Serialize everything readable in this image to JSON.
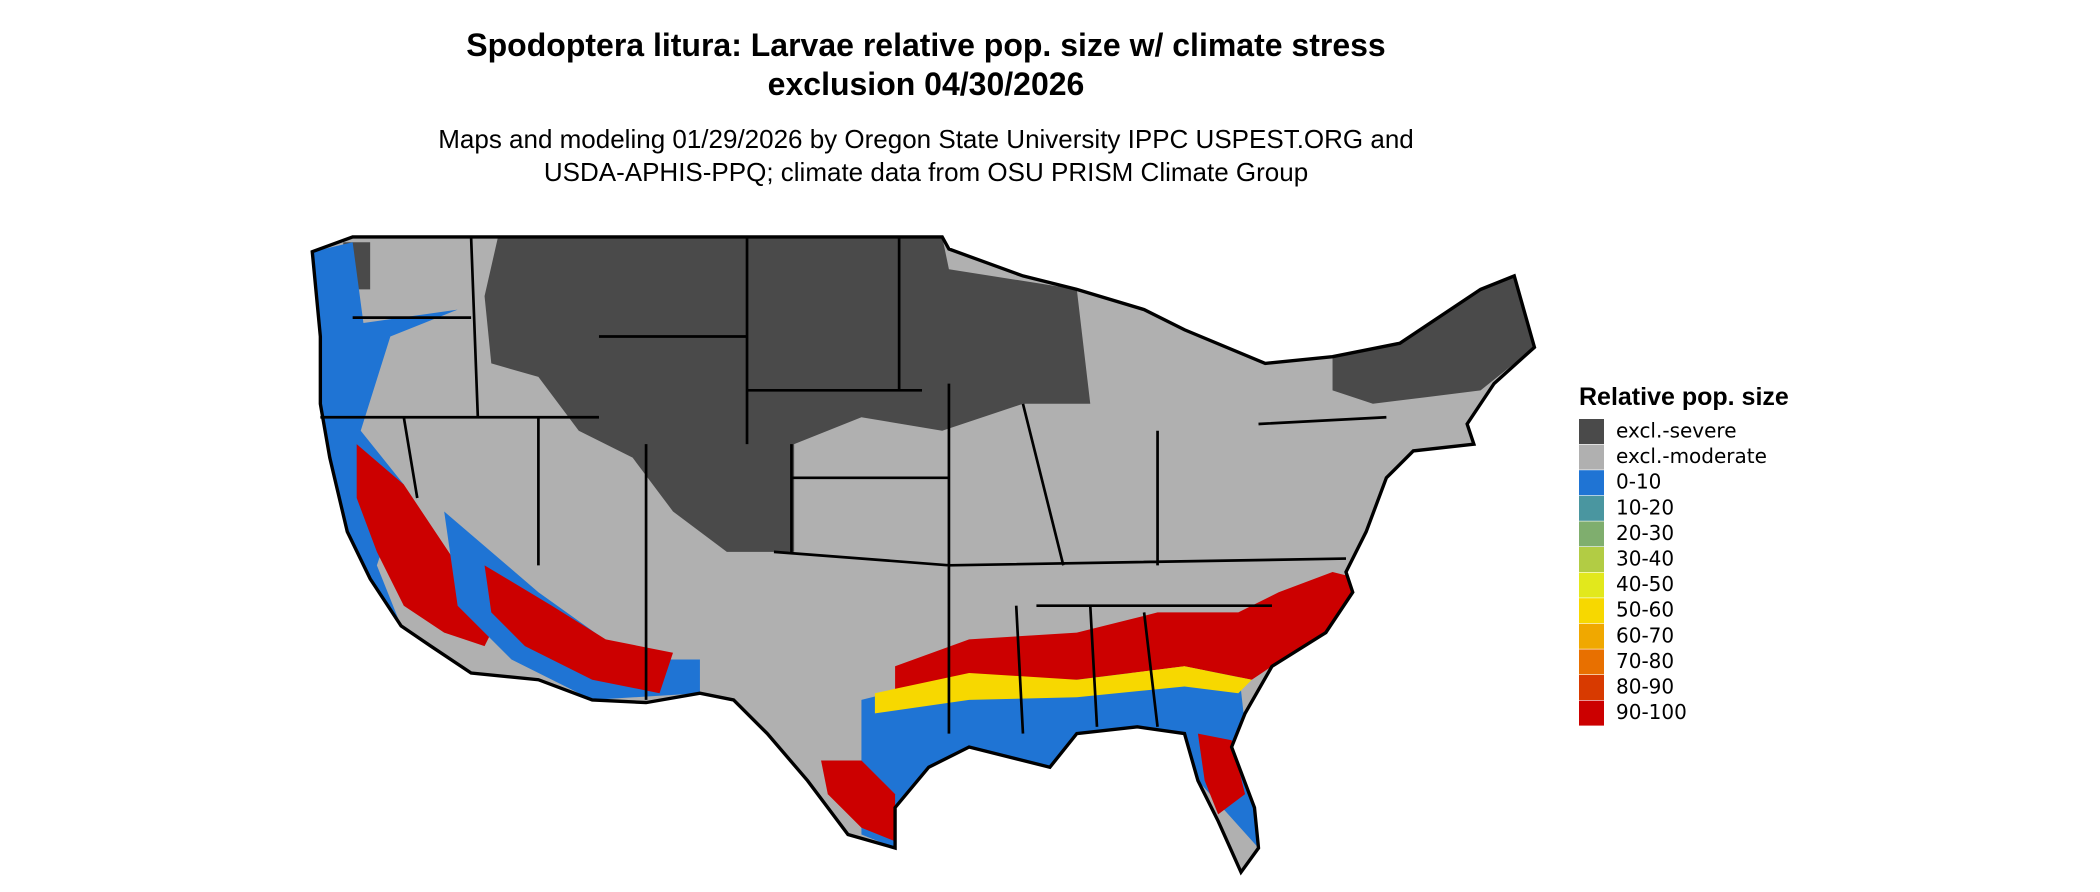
{
  "header": {
    "title_lines": [
      "Spodoptera litura: Larvae relative pop. size w/ climate stress",
      "exclusion 04/30/2026"
    ],
    "subtitle_lines": [
      "Maps and modeling 01/29/2026 by Oregon State University IPPC USPEST.ORG and",
      "USDA-APHIS-PPQ; climate data from OSU PRISM Climate Group"
    ]
  },
  "legend": {
    "title": "Relative pop. size",
    "items": [
      {
        "label": "excl.-severe",
        "color": "#4a4a4a"
      },
      {
        "label": "excl.-moderate",
        "color": "#b0b0b0"
      },
      {
        "label": "0-10",
        "color": "#1f74d4"
      },
      {
        "label": "10-20",
        "color": "#4a96a0"
      },
      {
        "label": "20-30",
        "color": "#7fae6e"
      },
      {
        "label": "30-40",
        "color": "#b2cc44"
      },
      {
        "label": "40-50",
        "color": "#e2e81c"
      },
      {
        "label": "50-60",
        "color": "#f7d800"
      },
      {
        "label": "60-70",
        "color": "#f0a800"
      },
      {
        "label": "70-80",
        "color": "#e87000"
      },
      {
        "label": "80-90",
        "color": "#d83a00"
      },
      {
        "label": "90-100",
        "color": "#cc0000"
      }
    ]
  }
}
